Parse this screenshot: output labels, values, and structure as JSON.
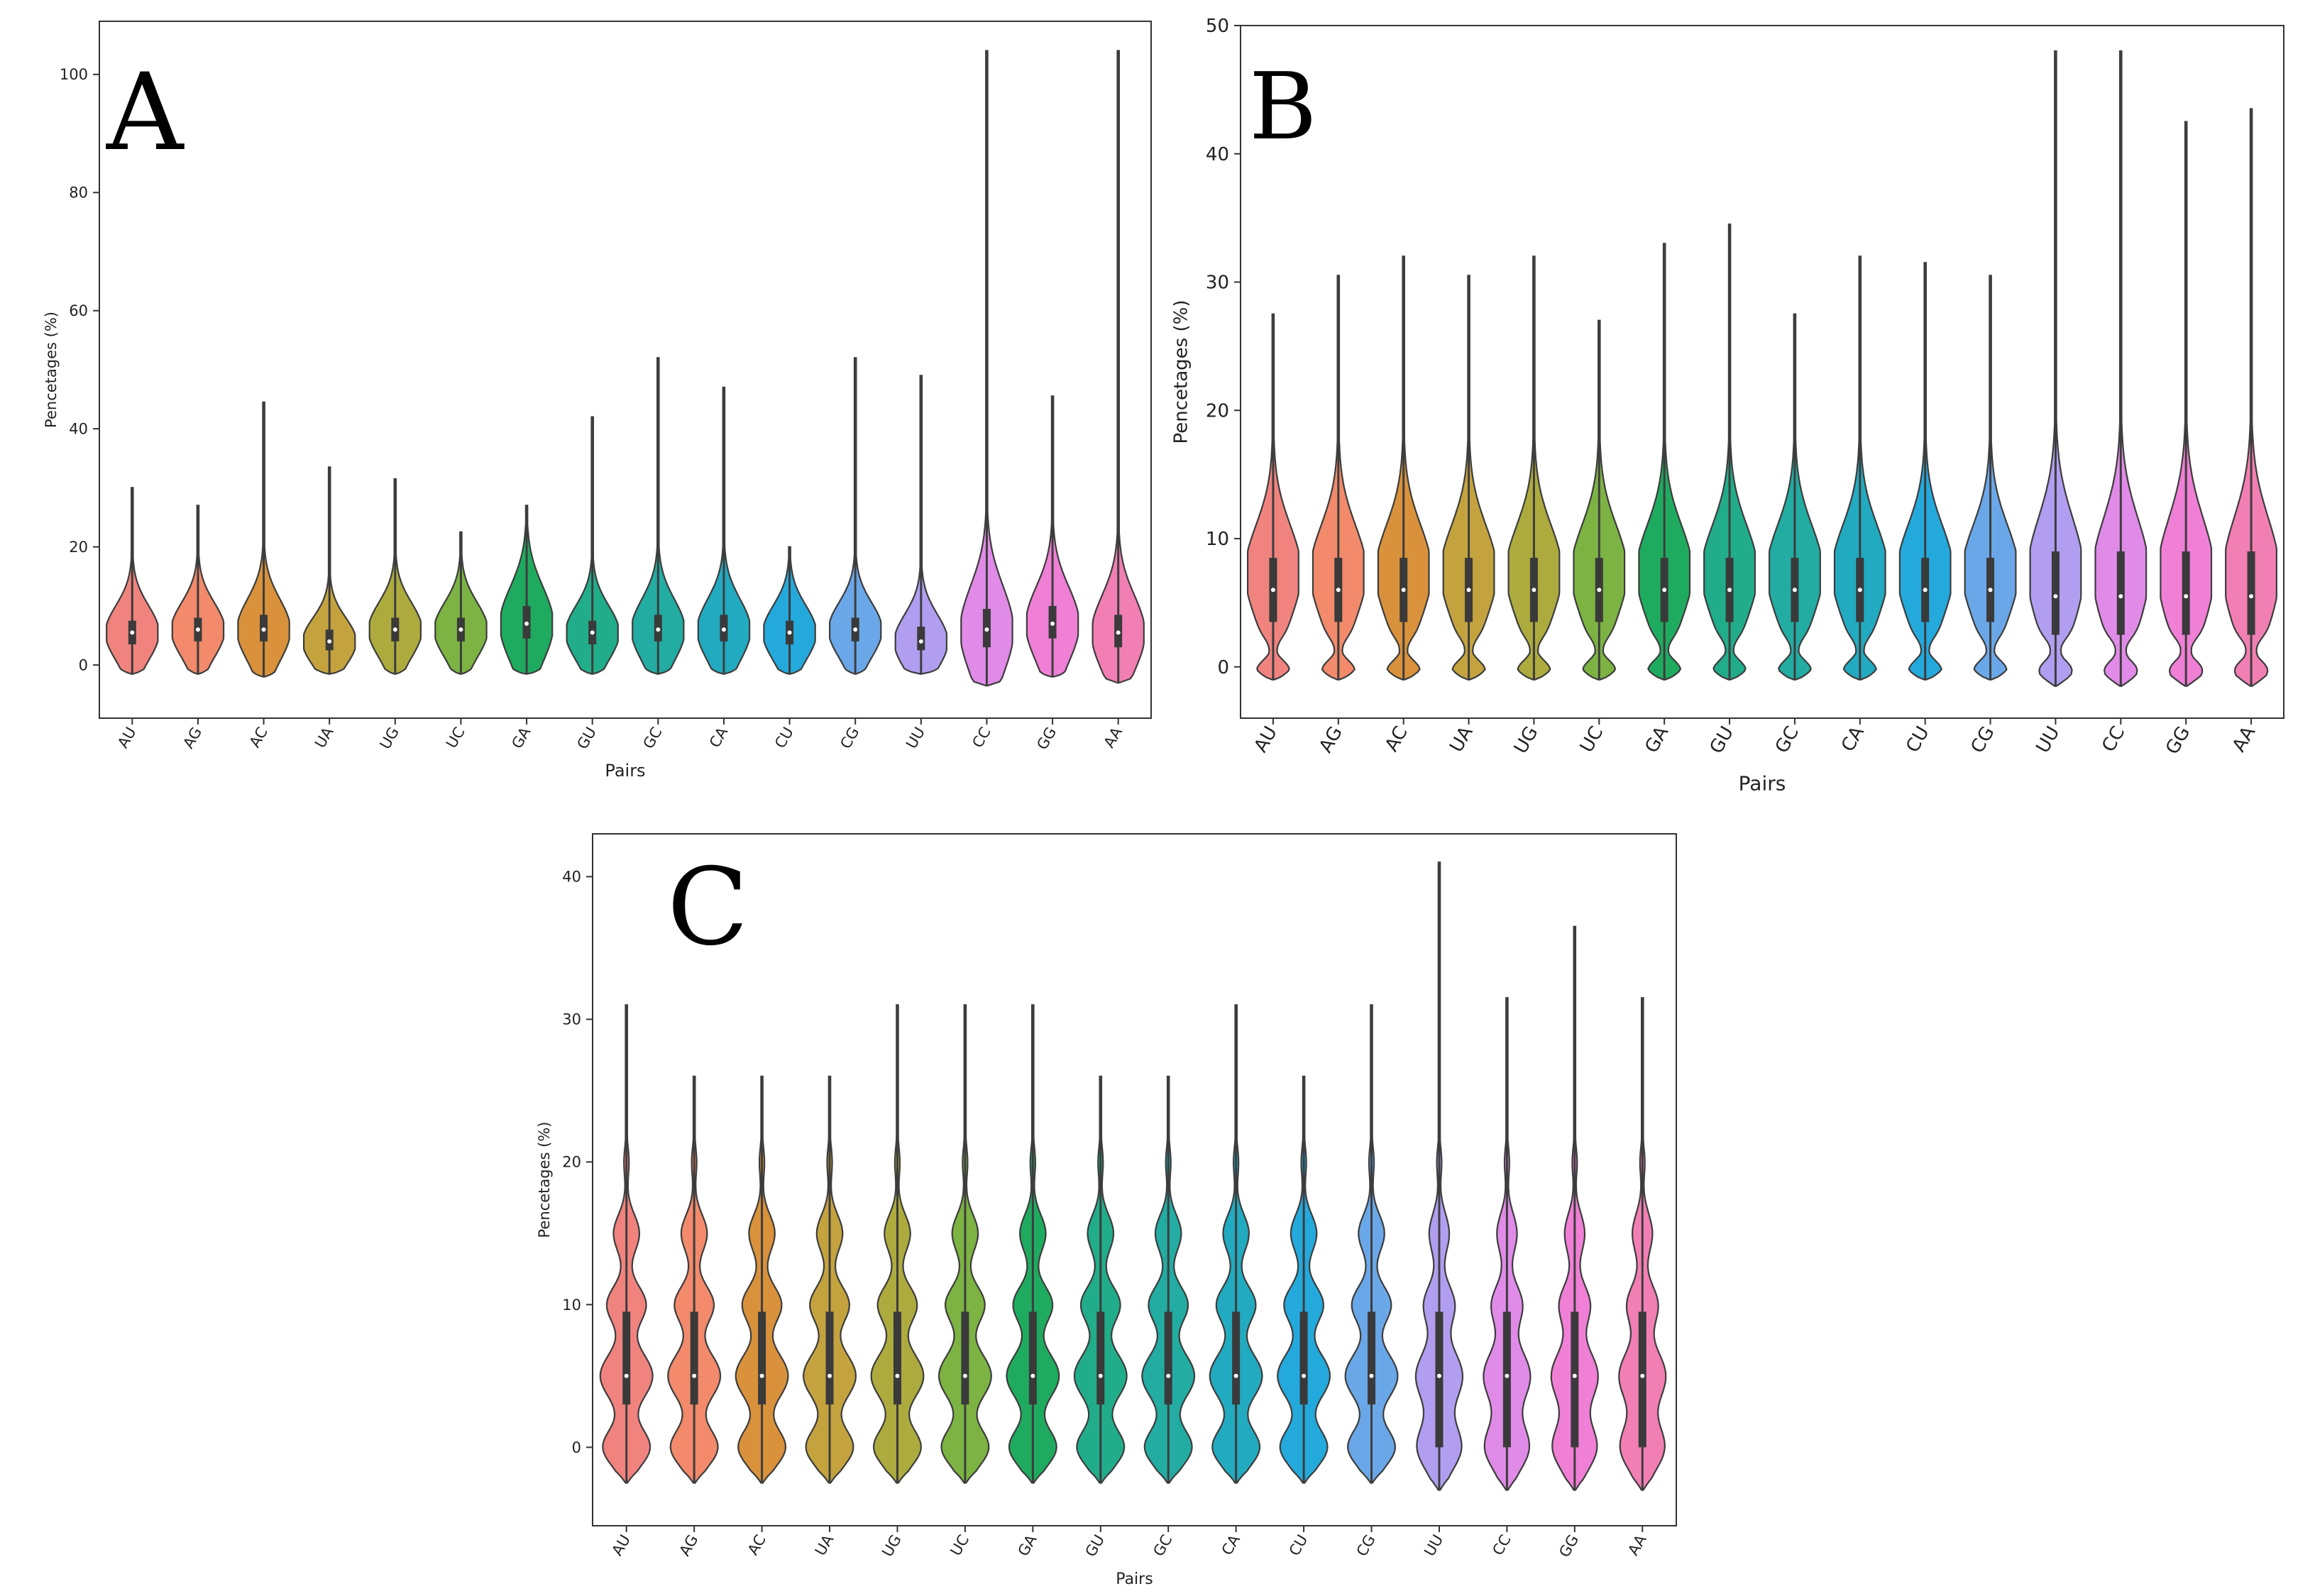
{
  "figure": {
    "panel_count": 3
  },
  "chart_data": [
    {
      "panel_label": "A",
      "type": "violin",
      "xlabel": "Pairs",
      "ylabel": "Pencetages (%)",
      "ylim": [
        -9,
        109
      ],
      "yticks": [
        0,
        20,
        40,
        60,
        80,
        100
      ],
      "categories": [
        "AU",
        "AG",
        "AC",
        "UA",
        "UG",
        "UC",
        "GA",
        "GU",
        "GC",
        "CA",
        "CU",
        "CG",
        "UU",
        "CC",
        "GG",
        "AA"
      ],
      "colors": [
        "#f1837f",
        "#f28a6b",
        "#d9923b",
        "#c4a33f",
        "#adab3e",
        "#7cb342",
        "#1fab5f",
        "#21ad8a",
        "#22aca2",
        "#22aac0",
        "#24a9dc",
        "#6aa7e8",
        "#b19ef0",
        "#e08be8",
        "#f07fd6",
        "#f27fb4"
      ],
      "min": [
        -1.5,
        -1.5,
        -2,
        -1.5,
        -1.5,
        -1.5,
        -1.5,
        -1.5,
        -1.5,
        -1.5,
        -1.5,
        -1.5,
        -1.5,
        -3.5,
        -2,
        -3
      ],
      "max": [
        30,
        27,
        44.5,
        33.5,
        31.5,
        22.5,
        27,
        42,
        52,
        47,
        20,
        52,
        49,
        104,
        45.5,
        104
      ],
      "q1": [
        3.5,
        4,
        4,
        2.5,
        4,
        4,
        4.5,
        3.5,
        4,
        4,
        3.5,
        4,
        2.5,
        3,
        4.5,
        3
      ],
      "median": [
        5.5,
        6,
        6,
        4,
        6,
        6,
        7,
        5.5,
        6,
        6,
        5.5,
        6,
        4,
        6,
        7,
        5.5
      ],
      "q3": [
        7.5,
        8,
        8.5,
        6,
        8,
        8,
        10,
        7.5,
        8.5,
        8.5,
        7.5,
        8,
        6.5,
        9.5,
        10,
        8.5
      ]
    },
    {
      "panel_label": "B",
      "type": "violin",
      "xlabel": "Pairs",
      "ylabel": "Pencetages (%)",
      "ylim": [
        -4,
        50
      ],
      "yticks": [
        0,
        10,
        20,
        30,
        40,
        50
      ],
      "categories": [
        "AU",
        "AG",
        "AC",
        "UA",
        "UG",
        "UC",
        "GA",
        "GU",
        "GC",
        "CA",
        "CU",
        "CG",
        "UU",
        "CC",
        "GG",
        "AA"
      ],
      "colors": [
        "#f1837f",
        "#f28a6b",
        "#d9923b",
        "#c4a33f",
        "#adab3e",
        "#7cb342",
        "#1fab5f",
        "#21ad8a",
        "#22aca2",
        "#22aac0",
        "#24a9dc",
        "#6aa7e8",
        "#b19ef0",
        "#e08be8",
        "#f07fd6",
        "#f27fb4"
      ],
      "min": [
        -1,
        -1,
        -1,
        -1,
        -1,
        -1,
        -1,
        -1,
        -1,
        -1,
        -1,
        -1,
        -1.5,
        -1.5,
        -1.5,
        -1.5
      ],
      "max": [
        27.5,
        30.5,
        32,
        30.5,
        32,
        27,
        33,
        34.5,
        27.5,
        32,
        31.5,
        30.5,
        48,
        48,
        42.5,
        43.5
      ],
      "q1": [
        3.5,
        3.5,
        3.5,
        3.5,
        3.5,
        3.5,
        3.5,
        3.5,
        3.5,
        3.5,
        3.5,
        3.5,
        2.5,
        2.5,
        2.5,
        2.5
      ],
      "median": [
        6,
        6,
        6,
        6,
        6,
        6,
        6,
        6,
        6,
        6,
        6,
        6,
        5.5,
        5.5,
        5.5,
        5.5
      ],
      "q3": [
        8.5,
        8.5,
        8.5,
        8.5,
        8.5,
        8.5,
        8.5,
        8.5,
        8.5,
        8.5,
        8.5,
        8.5,
        9,
        9,
        9,
        9
      ]
    },
    {
      "panel_label": "C",
      "type": "violin",
      "xlabel": "Pairs",
      "ylabel": "Pencetages (%)",
      "ylim": [
        -5.5,
        43
      ],
      "yticks": [
        0,
        10,
        20,
        30,
        40
      ],
      "categories": [
        "AU",
        "AG",
        "AC",
        "UA",
        "UG",
        "UC",
        "GA",
        "GU",
        "GC",
        "CA",
        "CU",
        "CG",
        "UU",
        "CC",
        "GG",
        "AA"
      ],
      "colors": [
        "#f1837f",
        "#f28a6b",
        "#d9923b",
        "#c4a33f",
        "#adab3e",
        "#7cb342",
        "#1fab5f",
        "#21ad8a",
        "#22aca2",
        "#22aac0",
        "#24a9dc",
        "#6aa7e8",
        "#b19ef0",
        "#e08be8",
        "#f07fd6",
        "#f27fb4"
      ],
      "min": [
        -2.5,
        -2.5,
        -2.5,
        -2.5,
        -2.5,
        -2.5,
        -2.5,
        -2.5,
        -2.5,
        -2.5,
        -2.5,
        -2.5,
        -3,
        -3,
        -3,
        -3
      ],
      "max": [
        31,
        26,
        26,
        26,
        31,
        31,
        31,
        26,
        26,
        31,
        26,
        31,
        41,
        31.5,
        36.5,
        31.5
      ],
      "q1": [
        3,
        3,
        3,
        3,
        3,
        3,
        3,
        3,
        3,
        3,
        3,
        3,
        0,
        0,
        0,
        0
      ],
      "median": [
        5,
        5,
        5,
        5,
        5,
        5,
        5,
        5,
        5,
        5,
        5,
        5,
        5,
        5,
        5,
        5
      ],
      "q3": [
        9.5,
        9.5,
        9.5,
        9.5,
        9.5,
        9.5,
        9.5,
        9.5,
        9.5,
        9.5,
        9.5,
        9.5,
        9.5,
        9.5,
        9.5,
        9.5
      ]
    }
  ]
}
